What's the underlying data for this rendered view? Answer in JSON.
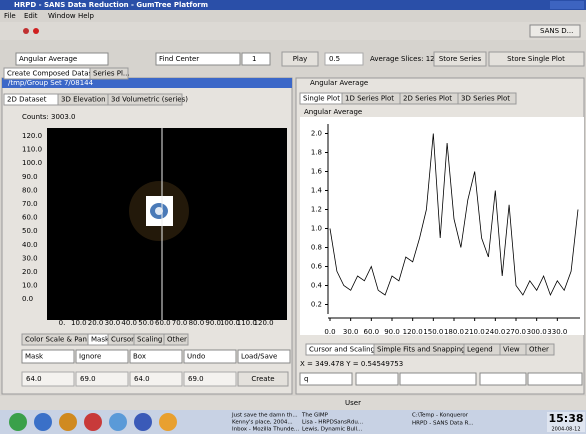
{
  "window": {
    "title": "HRPD - SANS Data Reduction - GumTree Platform",
    "menu": [
      "File",
      "Edit",
      "Window",
      "Help"
    ],
    "perspective": "SANS D..."
  },
  "toolbar": {
    "mode": "Angular Average",
    "center": "Find Center",
    "spinner": "1",
    "play": "Play",
    "speed": "0.5",
    "slices": "Average Slices: 128",
    "store_series": "Store Series",
    "store_single": "Store Single Plot",
    "hidden_tabs": [
      "Create Composed Dataset",
      "Series Pl..."
    ]
  },
  "left": {
    "header": "/tmp/Group Set 7/08144",
    "tabs": [
      "2D Dataset",
      "3D Elevation",
      "3d Volumetric (series)"
    ],
    "counts": "Counts: 3003.0",
    "yticks": [
      "120.0",
      "110.0",
      "100.0",
      "90.0",
      "80.0",
      "70.0",
      "60.0",
      "50.0",
      "40.0",
      "30.0",
      "20.0",
      "10.0",
      "0.0"
    ],
    "xticks": [
      "0.",
      "10.0",
      "20.0",
      "30.0",
      "40.0",
      "50.0",
      "60.0",
      "70.0",
      "80.0",
      "90.0",
      "100.0",
      "110.0",
      "120.0"
    ],
    "tool_tabs": [
      "Color Scale & Pan",
      "Mask",
      "Cursor",
      "Scaling",
      "Other"
    ],
    "selects": [
      "Mask",
      "Ignore",
      "Box",
      "Undo",
      "Load/Save"
    ],
    "fields": [
      "64.0",
      "69.0",
      "64.0",
      "69.0"
    ],
    "create": "Create"
  },
  "right": {
    "header": "Angular Average",
    "tabs": [
      "Single Plot",
      "1D Series Plot",
      "2D Series Plot",
      "3D Series Plot"
    ],
    "tool_tabs": [
      "Cursor and Scaling",
      "Simple Fits and Snapping",
      "Legend",
      "View",
      "Other"
    ],
    "cursor": "X = 349.478  Y = 0.54549753",
    "field": "q"
  },
  "chart_data": {
    "type": "line",
    "title": "Angular Average",
    "color": "#000000",
    "x": [
      0,
      10,
      20,
      30,
      40,
      50,
      60,
      70,
      80,
      90,
      100,
      110,
      120,
      130,
      140,
      150,
      160,
      170,
      180,
      190,
      200,
      210,
      220,
      230,
      240,
      250,
      260,
      270,
      280,
      290,
      300,
      310,
      320,
      330,
      340,
      350,
      360
    ],
    "values": [
      1.0,
      0.55,
      0.4,
      0.35,
      0.5,
      0.45,
      0.6,
      0.35,
      0.3,
      0.5,
      0.45,
      0.7,
      0.65,
      0.9,
      1.2,
      2.0,
      0.9,
      1.9,
      1.1,
      0.8,
      1.3,
      1.6,
      0.9,
      0.7,
      1.4,
      0.5,
      1.25,
      0.4,
      0.3,
      0.45,
      0.35,
      0.5,
      0.3,
      0.45,
      0.35,
      0.55,
      1.2
    ],
    "xlim": [
      0,
      360
    ],
    "ylim": [
      0.1,
      2.1
    ],
    "xticks": [
      {
        "value": 0,
        "label": "0.0"
      },
      {
        "value": 30,
        "label": "30.0"
      },
      {
        "value": 60,
        "label": "60.0"
      },
      {
        "value": 90,
        "label": "90.0"
      },
      {
        "value": 120,
        "label": "120.0"
      },
      {
        "value": 150,
        "label": "150.0"
      },
      {
        "value": 180,
        "label": "180.0"
      },
      {
        "value": 210,
        "label": "210.0"
      },
      {
        "value": 240,
        "label": "240.0"
      },
      {
        "value": 270,
        "label": "270.0"
      },
      {
        "value": 300,
        "label": "300.0"
      },
      {
        "value": 330,
        "label": "330.0"
      }
    ],
    "yticks": [
      0.2,
      0.4,
      0.6,
      0.8,
      {
        "value": 1,
        "label": "1.0"
      },
      1.2,
      1.4,
      1.6,
      1.8,
      {
        "value": 2,
        "label": "2.0"
      }
    ]
  },
  "status": "User",
  "taskbar": {
    "tasks": [
      "Just save the damn th...",
      "Kenny's place, 2004...",
      "Inbox - Mozilla Thunde...",
      "The GIMP",
      "Lisa - HRPDSansRdu...",
      "Lewis, Dynamic Bull...",
      "C:\\Temp - Konqueror",
      "HRPD - SANS Data R..."
    ],
    "clock": "15:38",
    "date": "2004-08-12"
  }
}
